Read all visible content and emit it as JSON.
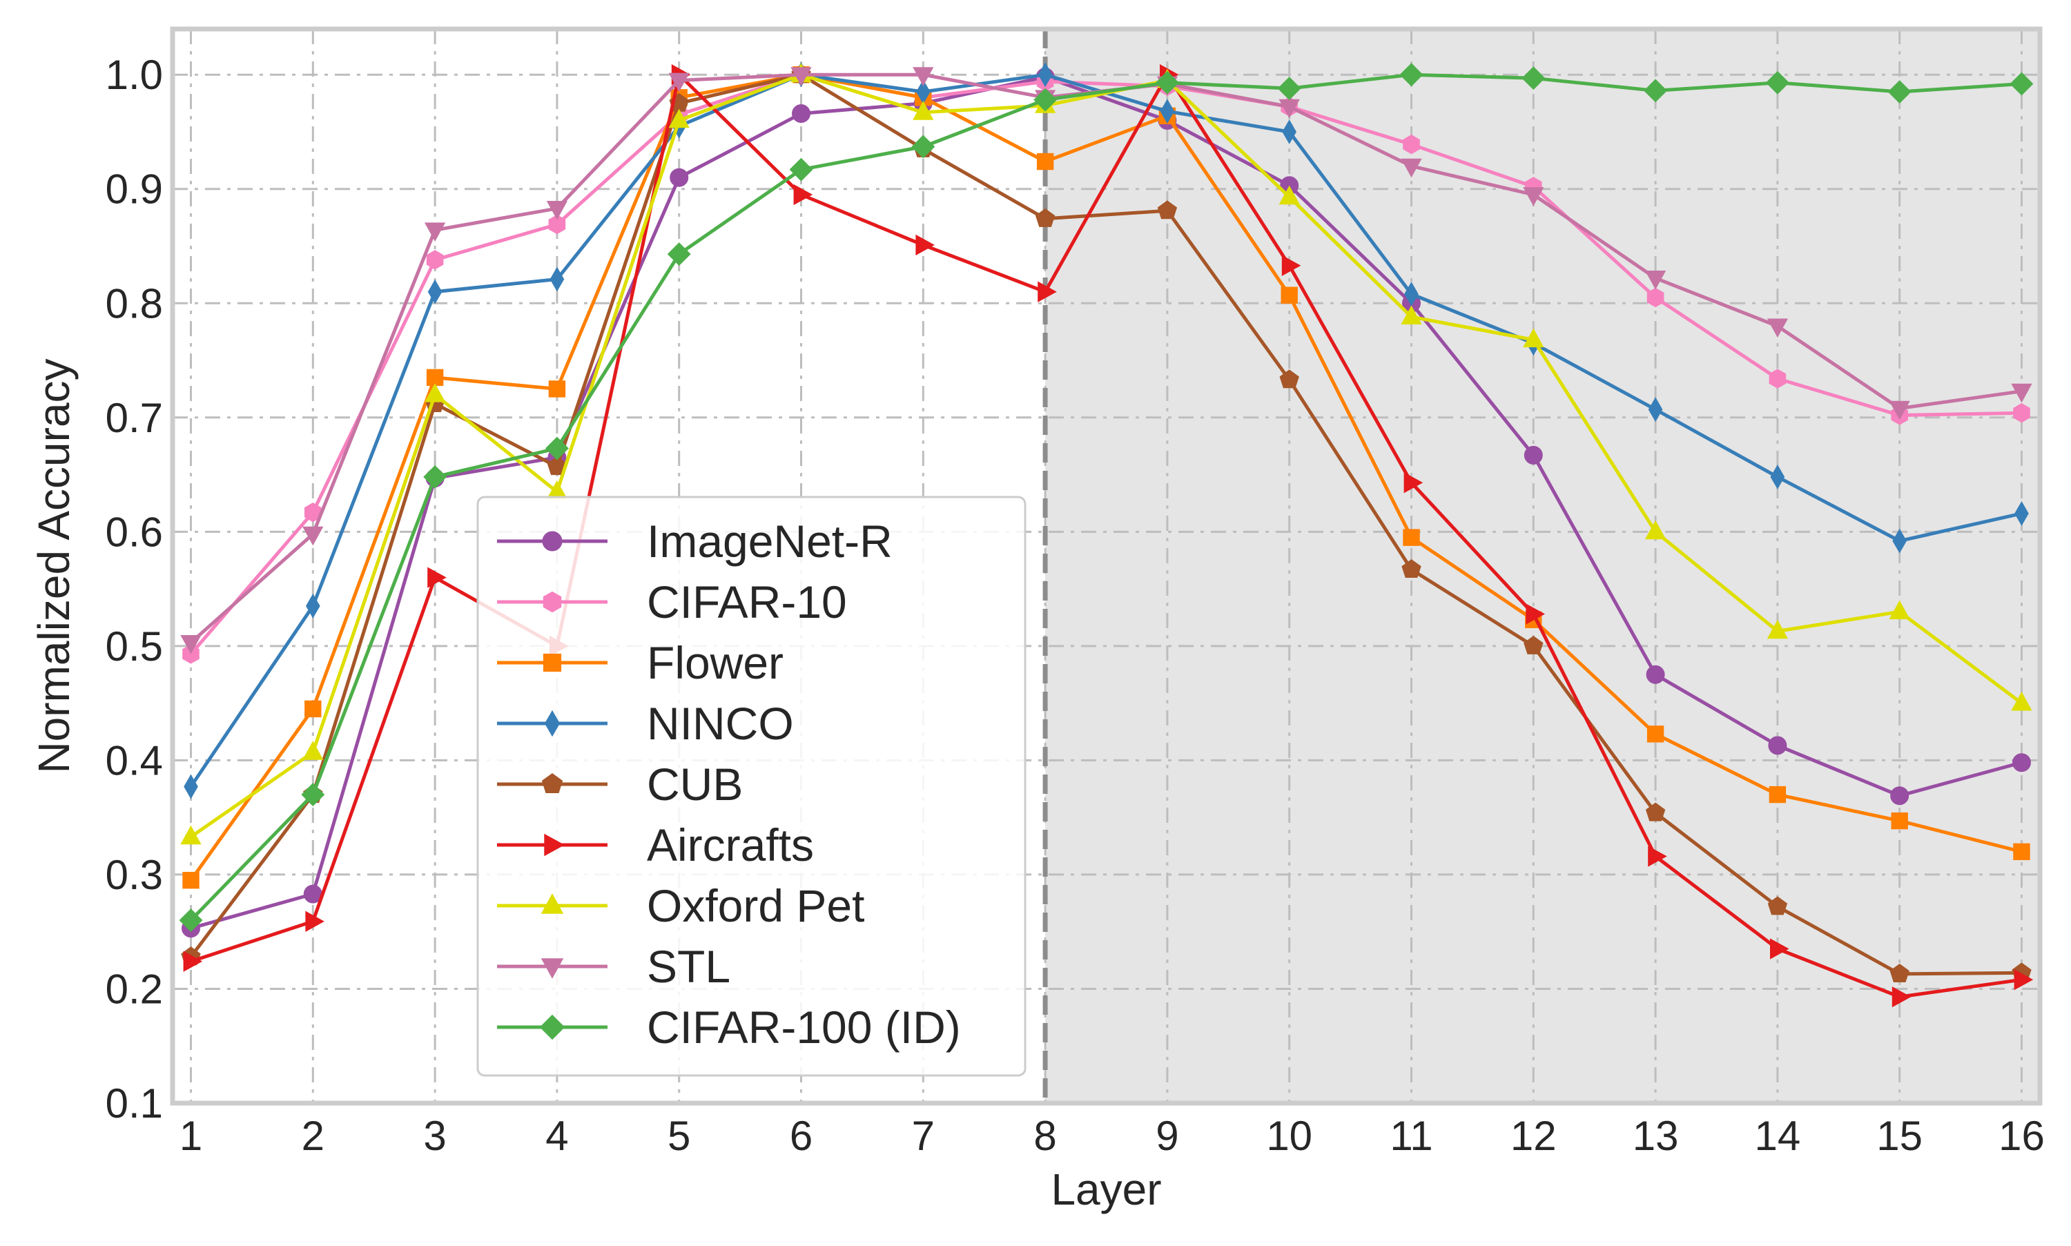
{
  "chart_data": {
    "type": "line",
    "title": "",
    "xlabel": "Layer",
    "ylabel": "Normalized  Accuracy",
    "x": [
      1,
      2,
      3,
      4,
      5,
      6,
      7,
      8,
      9,
      10,
      11,
      12,
      13,
      14,
      15,
      16
    ],
    "xlim": [
      0.85,
      16.15
    ],
    "ylim": [
      0.1,
      1.04
    ],
    "yticks": [
      "0.1",
      "0.2",
      "0.3",
      "0.4",
      "0.5",
      "0.6",
      "0.7",
      "0.8",
      "0.9",
      "1.0"
    ],
    "xticks": [
      "1",
      "2",
      "3",
      "4",
      "5",
      "6",
      "7",
      "8",
      "9",
      "10",
      "11",
      "12",
      "13",
      "14",
      "15",
      "16"
    ],
    "shaded_region": {
      "from_x": 8,
      "to_x": 16.15,
      "color": "#e5e5e5"
    },
    "vertical_line_x": 8,
    "grid": true,
    "legend_position": "lower-center",
    "series": [
      {
        "name": "ImageNet-R",
        "color": "#984ea3",
        "marker": "circle",
        "values": [
          0.253,
          0.283,
          0.647,
          0.665,
          0.91,
          0.966,
          0.975,
          0.998,
          0.96,
          0.903,
          0.8,
          0.667,
          0.475,
          0.413,
          0.369,
          0.398
        ]
      },
      {
        "name": "CIFAR-10",
        "color": "#f781bf",
        "marker": "hexagon",
        "values": [
          0.493,
          0.617,
          0.838,
          0.869,
          0.965,
          1.0,
          0.98,
          0.994,
          0.99,
          0.972,
          0.939,
          0.902,
          0.805,
          0.734,
          0.702,
          0.704
        ]
      },
      {
        "name": "Flower",
        "color": "#ff7f00",
        "marker": "square",
        "values": [
          0.295,
          0.445,
          0.735,
          0.725,
          0.98,
          1.0,
          0.98,
          0.924,
          0.964,
          0.807,
          0.595,
          0.523,
          0.423,
          0.37,
          0.347,
          0.32
        ]
      },
      {
        "name": "NINCO",
        "color": "#377eb8",
        "marker": "thin-diamond",
        "values": [
          0.377,
          0.535,
          0.81,
          0.821,
          0.955,
          1.0,
          0.985,
          1.0,
          0.968,
          0.95,
          0.808,
          0.765,
          0.707,
          0.648,
          0.592,
          0.616
        ]
      },
      {
        "name": "CUB",
        "color": "#a65628",
        "marker": "pentagon",
        "values": [
          0.228,
          0.37,
          0.712,
          0.657,
          0.975,
          1.0,
          0.935,
          0.874,
          0.881,
          0.733,
          0.567,
          0.5,
          0.354,
          0.272,
          0.213,
          0.214
        ]
      },
      {
        "name": "Aircrafts",
        "color": "#e41a1c",
        "marker": "triangle-right",
        "values": [
          0.224,
          0.259,
          0.56,
          0.5,
          1.0,
          0.895,
          0.851,
          0.81,
          1.0,
          0.833,
          0.643,
          0.528,
          0.316,
          0.235,
          0.193,
          0.208
        ]
      },
      {
        "name": "Oxford Pet",
        "color": "#dede00",
        "marker": "triangle-up",
        "values": [
          0.333,
          0.407,
          0.72,
          0.635,
          0.96,
          1.0,
          0.967,
          0.973,
          0.995,
          0.893,
          0.788,
          0.768,
          0.6,
          0.513,
          0.53,
          0.45
        ]
      },
      {
        "name": "STL",
        "color": "#c673a3",
        "marker": "triangle-down",
        "values": [
          0.503,
          0.598,
          0.864,
          0.883,
          0.995,
          1.0,
          1.0,
          0.98,
          0.992,
          0.972,
          0.92,
          0.895,
          0.822,
          0.78,
          0.708,
          0.723
        ]
      },
      {
        "name": "CIFAR-100 (ID)",
        "color": "#4daf4a",
        "marker": "diamond",
        "values": [
          0.26,
          0.37,
          0.648,
          0.673,
          0.843,
          0.917,
          0.937,
          0.978,
          0.993,
          0.988,
          1.0,
          0.997,
          0.986,
          0.993,
          0.985,
          0.992
        ]
      }
    ]
  }
}
